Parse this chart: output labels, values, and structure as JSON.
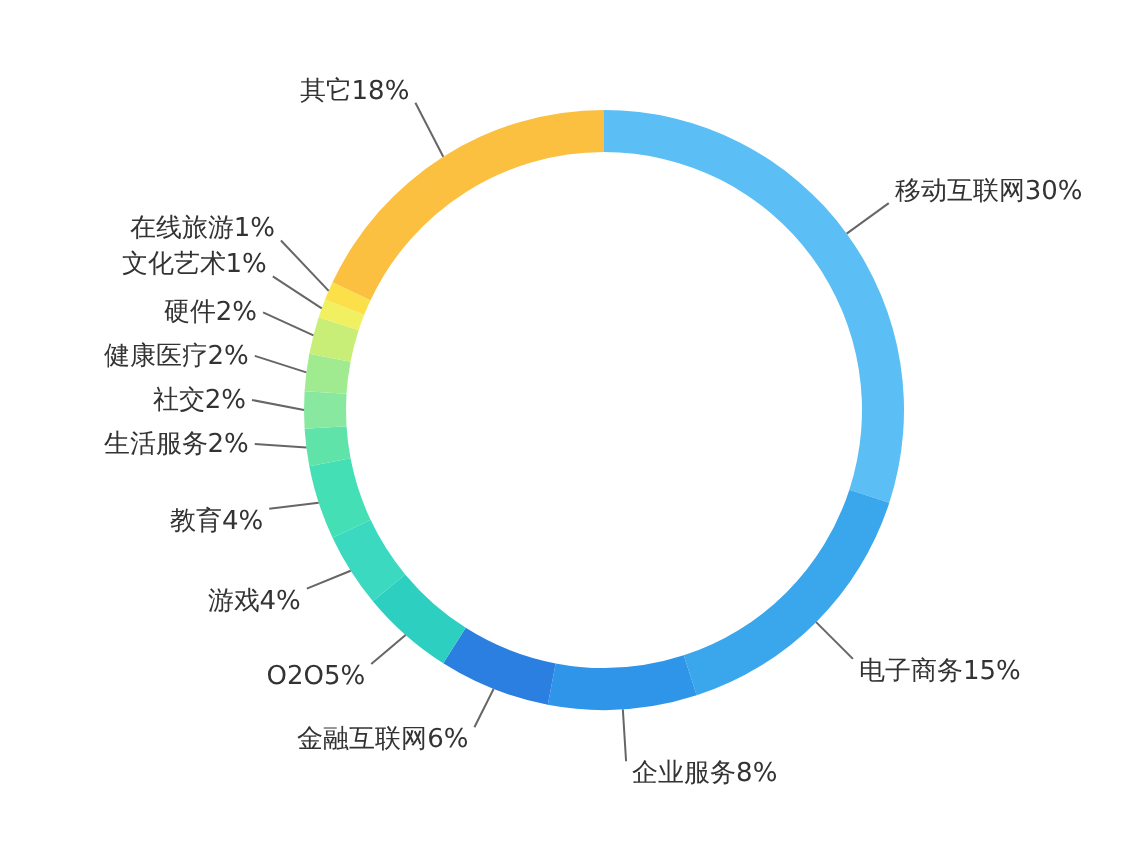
{
  "chart_data": {
    "type": "donut",
    "categories": [
      "移动互联网30%",
      "电子商务15%",
      "企业服务8%",
      "金融互联网6%",
      "O2O5%",
      "游戏4%",
      "教育4%",
      "生活服务2%",
      "社交2%",
      "健康医疗2%",
      "硬件2%",
      "文化艺术1%",
      "在线旅游1%",
      "其它18%"
    ],
    "values": [
      30,
      15,
      8,
      6,
      5,
      4,
      4,
      2,
      2,
      2,
      2,
      1,
      1,
      18
    ],
    "colors": [
      "#5bbef5",
      "#3aa6ec",
      "#2f95e8",
      "#2a7fe0",
      "#2ccfc0",
      "#3ad9c0",
      "#45dfb5",
      "#5fe3a8",
      "#88e8a0",
      "#a0ea90",
      "#c8ee78",
      "#f0f060",
      "#fbe04a",
      "#fbc040"
    ],
    "legend": false
  }
}
